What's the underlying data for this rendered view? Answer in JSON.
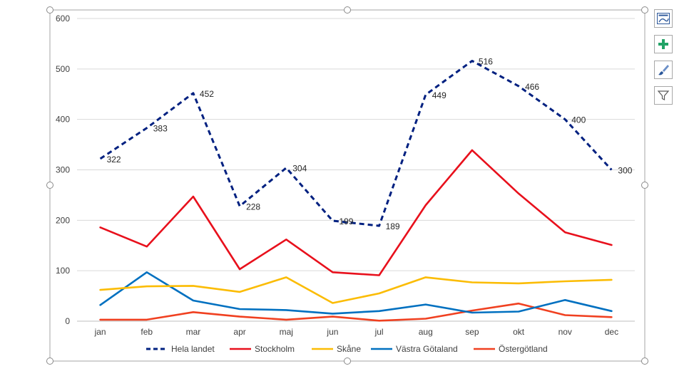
{
  "chart_data": {
    "type": "line",
    "categories": [
      "jan",
      "feb",
      "mar",
      "apr",
      "maj",
      "jun",
      "jul",
      "aug",
      "sep",
      "okt",
      "nov",
      "dec"
    ],
    "ylim": [
      0,
      600
    ],
    "yticks": [
      0,
      100,
      200,
      300,
      400,
      500,
      600
    ],
    "grid": true,
    "legend_position": "bottom",
    "series": [
      {
        "name": "Hela landet",
        "color": "#002080",
        "dashed": true,
        "labels": true,
        "values": [
          322,
          383,
          452,
          228,
          304,
          199,
          189,
          449,
          516,
          466,
          400,
          300
        ]
      },
      {
        "name": "Stockholm",
        "color": "#e8101c",
        "dashed": false,
        "labels": false,
        "values": [
          186,
          148,
          247,
          103,
          162,
          97,
          91,
          230,
          339,
          253,
          176,
          151
        ]
      },
      {
        "name": "Skåne",
        "color": "#fbbc04",
        "dashed": false,
        "labels": false,
        "values": [
          62,
          69,
          70,
          58,
          87,
          36,
          55,
          87,
          77,
          75,
          79,
          82
        ]
      },
      {
        "name": "Västra Götaland",
        "color": "#0070c0",
        "dashed": false,
        "labels": false,
        "values": [
          32,
          97,
          41,
          24,
          22,
          15,
          20,
          33,
          17,
          19,
          42,
          20
        ]
      },
      {
        "name": "Östergötland",
        "color": "#f04020",
        "dashed": false,
        "labels": false,
        "values": [
          3,
          3,
          18,
          9,
          3,
          9,
          1,
          5,
          21,
          35,
          12,
          8
        ]
      }
    ]
  },
  "side_buttons": [
    {
      "name": "chart-elements",
      "icon": "chart-layout-icon"
    },
    {
      "name": "add-element",
      "icon": "plus-icon"
    },
    {
      "name": "chart-styles",
      "icon": "brush-icon"
    },
    {
      "name": "chart-filters",
      "icon": "filter-icon"
    }
  ]
}
